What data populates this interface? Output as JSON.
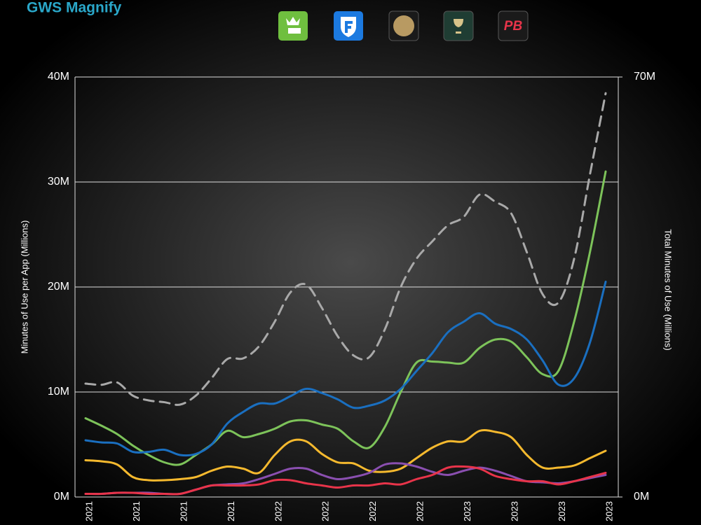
{
  "chart_data": {
    "type": "line",
    "title": "GWS Magnify",
    "y_label": "Minutes of Use per App (Millions)",
    "y2_label": "Total Minutes of Use (Millions)",
    "categories": [
      "2021",
      null,
      null,
      "2021",
      null,
      null,
      "2021",
      null,
      null,
      "2021",
      null,
      null,
      "2022",
      null,
      null,
      "2022",
      null,
      null,
      "2022",
      null,
      null,
      "2022",
      null,
      null,
      "2023",
      null,
      null,
      "2023",
      null,
      null,
      "2023",
      null,
      null,
      "2023"
    ],
    "ylim": [
      0,
      40
    ],
    "yticks": [
      {
        "value": 0,
        "label": "0M"
      },
      {
        "value": 10,
        "label": "10M"
      },
      {
        "value": 20,
        "label": "20M"
      },
      {
        "value": 30,
        "label": "30M"
      },
      {
        "value": 40,
        "label": "40M"
      }
    ],
    "y2lim": [
      0,
      70
    ],
    "y2ticks": [
      {
        "value": 0,
        "label": "0M"
      },
      {
        "value": 70,
        "label": "70M"
      }
    ],
    "grid": true,
    "series": [
      {
        "color": "#7dc35a",
        "values": [
          7.5,
          6.8,
          6.0,
          4.9,
          4.0,
          3.3,
          3.1,
          4.0,
          5.0,
          6.3,
          5.7,
          6.0,
          6.5,
          7.2,
          7.3,
          6.9,
          6.5,
          5.3,
          4.7,
          6.7,
          10.0,
          12.8,
          12.9,
          12.8,
          12.8,
          14.2,
          15.0,
          14.8,
          13.3,
          11.7,
          12.0,
          16.7,
          23.3,
          31.0
        ]
      },
      {
        "color": "#1a6fc0",
        "values": [
          5.4,
          5.2,
          5.1,
          4.3,
          4.3,
          4.5,
          4.0,
          4.1,
          5.0,
          7.0,
          8.1,
          8.9,
          8.9,
          9.6,
          10.3,
          9.9,
          9.3,
          8.5,
          8.7,
          9.2,
          10.3,
          12.0,
          13.7,
          15.7,
          16.7,
          17.5,
          16.5,
          16.0,
          15.0,
          13.0,
          10.7,
          11.3,
          14.7,
          20.5
        ]
      },
      {
        "color": "#f5b92e",
        "values": [
          3.5,
          3.4,
          3.1,
          1.9,
          1.6,
          1.6,
          1.7,
          1.9,
          2.5,
          2.9,
          2.7,
          2.3,
          4.0,
          5.3,
          5.3,
          4.1,
          3.3,
          3.2,
          2.5,
          2.4,
          2.7,
          3.7,
          4.7,
          5.3,
          5.3,
          6.3,
          6.2,
          5.7,
          4.0,
          2.8,
          2.8,
          3.0,
          3.7,
          4.4
        ]
      },
      {
        "color": "#8a4fb0",
        "values": [
          0.3,
          0.3,
          0.4,
          0.4,
          0.4,
          0.3,
          0.3,
          0.7,
          1.1,
          1.2,
          1.3,
          1.7,
          2.2,
          2.7,
          2.7,
          2.1,
          1.7,
          1.9,
          2.3,
          3.1,
          3.2,
          2.9,
          2.4,
          2.1,
          2.5,
          2.8,
          2.5,
          2.0,
          1.5,
          1.4,
          1.3,
          1.5,
          1.8,
          2.1
        ]
      },
      {
        "name": "PB",
        "color": "#e8344a",
        "values": [
          0.3,
          0.3,
          0.4,
          0.4,
          0.3,
          0.3,
          0.3,
          0.7,
          1.1,
          1.1,
          1.1,
          1.2,
          1.6,
          1.6,
          1.3,
          1.1,
          0.9,
          1.1,
          1.1,
          1.3,
          1.2,
          1.7,
          2.1,
          2.8,
          2.9,
          2.7,
          2.0,
          1.7,
          1.5,
          1.5,
          1.2,
          1.5,
          1.9,
          2.3
        ]
      },
      {
        "color": "#a9a9a9",
        "axis": "y2",
        "dashed": true,
        "values": [
          18.9,
          18.7,
          19.1,
          16.9,
          16.1,
          15.8,
          15.4,
          16.9,
          19.8,
          23.0,
          23.1,
          25.1,
          29.2,
          34.1,
          35.4,
          31.5,
          26.8,
          23.6,
          23.3,
          28.0,
          35.0,
          39.7,
          42.6,
          45.3,
          46.7,
          50.4,
          49.2,
          47.3,
          40.8,
          33.8,
          32.4,
          39.7,
          53.7,
          67.3
        ]
      }
    ]
  }
}
